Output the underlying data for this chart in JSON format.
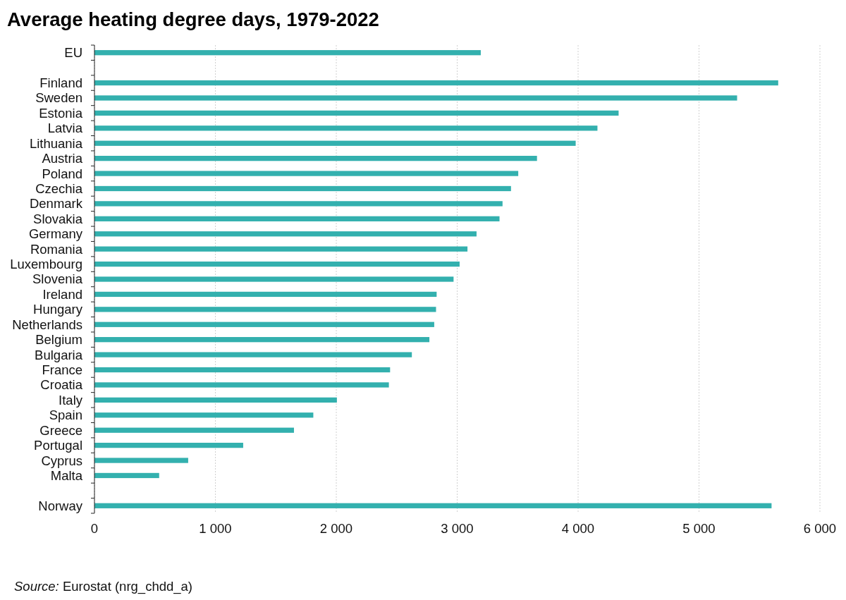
{
  "chart_data": {
    "type": "bar",
    "orientation": "horizontal",
    "title": "Average heating degree days, 1979-2022",
    "categories": [
      "EU",
      null,
      "Finland",
      "Sweden",
      "Estonia",
      "Latvia",
      "Lithuania",
      "Austria",
      "Poland",
      "Czechia",
      "Denmark",
      "Slovakia",
      "Germany",
      "Romania",
      "Luxembourg",
      "Slovenia",
      "Ireland",
      "Hungary",
      "Netherlands",
      "Belgium",
      "Bulgaria",
      "France",
      "Croatia",
      "Italy",
      "Spain",
      "Greece",
      "Portugal",
      "Cyprus",
      "Malta",
      null,
      "Norway"
    ],
    "values": [
      3195,
      null,
      5655,
      5315,
      4335,
      4160,
      3980,
      3660,
      3505,
      3445,
      3375,
      3350,
      3160,
      3085,
      3020,
      2970,
      2830,
      2825,
      2810,
      2770,
      2625,
      2445,
      2435,
      2005,
      1810,
      1650,
      1230,
      775,
      535,
      null,
      5600
    ],
    "color": "#33b0ae",
    "xlim": [
      0,
      6000
    ],
    "xticks": [
      0,
      {
        "value": 1000,
        "label": "1 000"
      },
      {
        "value": 2000,
        "label": "2 000"
      },
      {
        "value": 3000,
        "label": "3 000"
      },
      {
        "value": 4000,
        "label": "4 000"
      },
      {
        "value": 5000,
        "label": "5 000"
      },
      {
        "value": 6000,
        "label": "6 000"
      }
    ],
    "grid": "x",
    "annotations": [
      "Source: Eurostat (nrg_chdd_a)"
    ]
  }
}
